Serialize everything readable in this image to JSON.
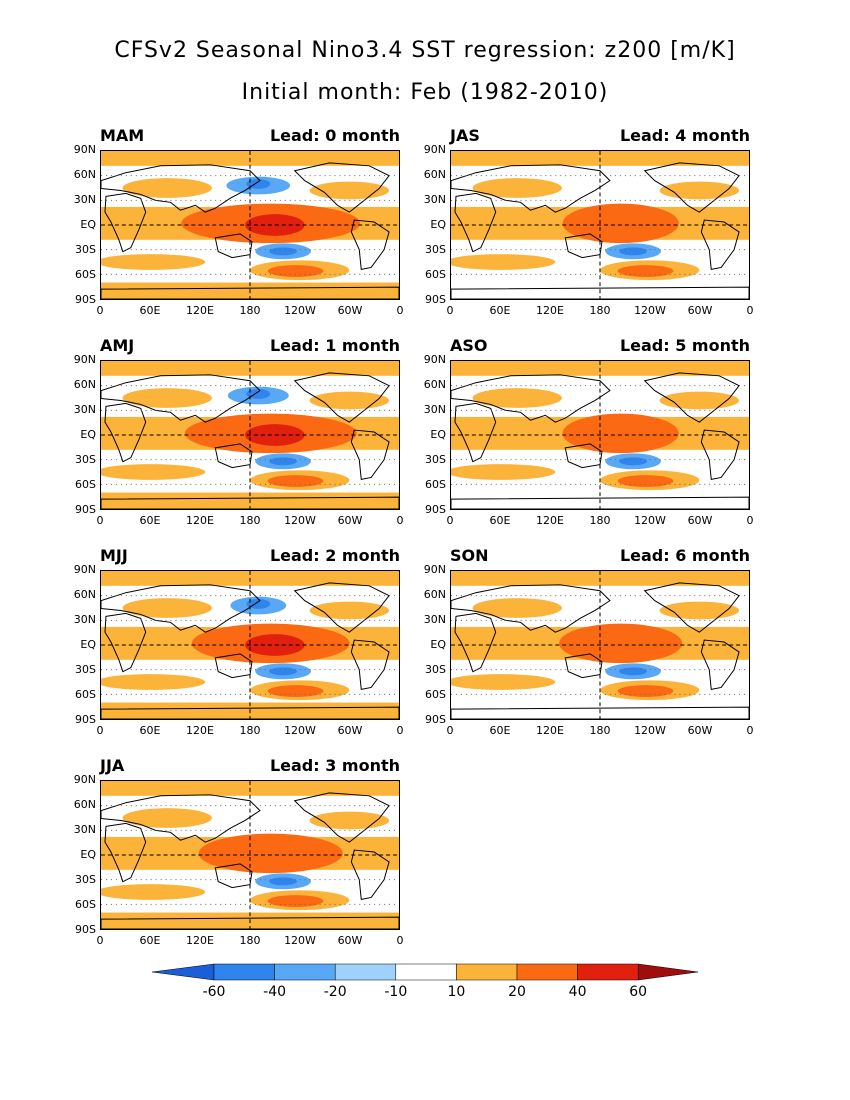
{
  "title_line1": "CFSv2 Seasonal Nino3.4 SST regression: z200 [m/K]",
  "title_line2": "Initial month: Feb (1982-2010)",
  "lat_labels": [
    "90N",
    "60N",
    "30N",
    "EQ",
    "30S",
    "60S",
    "90S"
  ],
  "lon_labels": [
    "0",
    "60E",
    "120E",
    "180",
    "120W",
    "60W",
    "0"
  ],
  "panels": [
    {
      "season": "MAM",
      "lead": "Lead: 0 month",
      "strength": 1.0,
      "neg_north": true
    },
    {
      "season": "JAS",
      "lead": "Lead: 4 month",
      "strength": 0.55,
      "neg_north": false
    },
    {
      "season": "AMJ",
      "lead": "Lead: 1 month",
      "strength": 0.95,
      "neg_north": true
    },
    {
      "season": "ASO",
      "lead": "Lead: 5 month",
      "strength": 0.55,
      "neg_north": false
    },
    {
      "season": "MJJ",
      "lead": "Lead: 2 month",
      "strength": 0.85,
      "neg_north": true
    },
    {
      "season": "SON",
      "lead": "Lead: 6 month",
      "strength": 0.6,
      "neg_north": false
    },
    {
      "season": "JJA",
      "lead": "Lead: 3 month",
      "strength": 0.75,
      "neg_north": false
    }
  ],
  "colorbar": {
    "labels": [
      "-60",
      "-40",
      "-20",
      "-10",
      "10",
      "20",
      "40",
      "60"
    ],
    "colors": [
      "#1a5fd8",
      "#2f84ee",
      "#59a8f5",
      "#9fd2fb",
      "#ffffff",
      "#fbb33a",
      "#fb6a12",
      "#e1200e",
      "#a10d0d"
    ]
  }
}
